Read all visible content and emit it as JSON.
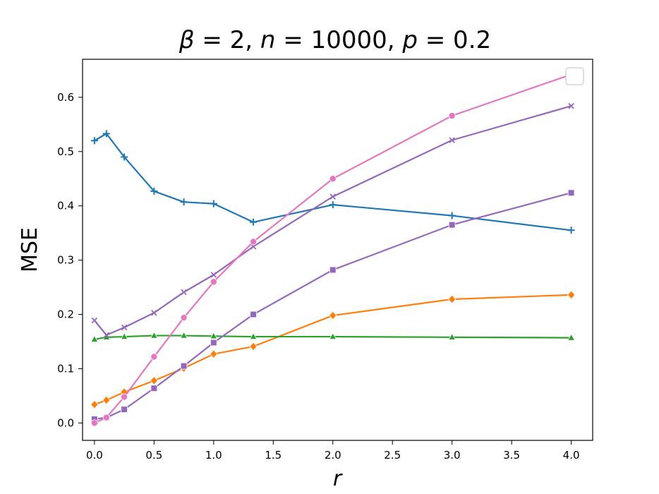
{
  "chart_data": {
    "type": "line",
    "title_parts": [
      {
        "text": "β",
        "italic": true
      },
      {
        "text": " = 2, ",
        "italic": false
      },
      {
        "text": "n",
        "italic": true
      },
      {
        "text": " = 10000, ",
        "italic": false
      },
      {
        "text": "p",
        "italic": true
      },
      {
        "text": " = 0.2",
        "italic": false
      }
    ],
    "xlabel": "r",
    "ylabel": "MSE",
    "xlim": [
      -0.1,
      4.18
    ],
    "ylim": [
      -0.032,
      0.67
    ],
    "xticks": [
      0.0,
      0.5,
      1.0,
      1.5,
      2.0,
      2.5,
      3.0,
      3.5,
      4.0
    ],
    "xtick_labels": [
      "0.0",
      "0.5",
      "1.0",
      "1.5",
      "2.0",
      "2.5",
      "3.0",
      "3.5",
      "4.0"
    ],
    "yticks": [
      0.0,
      0.1,
      0.2,
      0.3,
      0.4,
      0.5,
      0.6
    ],
    "ytick_labels": [
      "0.0",
      "0.1",
      "0.2",
      "0.3",
      "0.4",
      "0.5",
      "0.6"
    ],
    "grid": false,
    "legend": {
      "position": "top-right",
      "entries": []
    },
    "x": [
      0.0,
      0.1,
      0.25,
      0.5,
      0.75,
      1.0,
      1.333,
      2.0,
      3.0,
      4.0
    ],
    "series": [
      {
        "color": "#1f77b4",
        "marker": "plus",
        "values": [
          0.52,
          0.533,
          0.49,
          0.427,
          0.407,
          0.404,
          0.37,
          0.402,
          0.382,
          0.355
        ]
      },
      {
        "color": "#ff7f0e",
        "marker": "diamond",
        "values": [
          0.034,
          0.042,
          0.057,
          0.078,
          0.101,
          0.127,
          0.141,
          0.198,
          0.228,
          0.236
        ]
      },
      {
        "color": "#2ca02c",
        "marker": "triangle",
        "values": [
          0.154,
          0.158,
          0.159,
          0.161,
          0.161,
          0.16,
          0.159,
          0.159,
          0.158,
          0.157
        ]
      },
      {
        "color": "#9467bd",
        "marker": "x",
        "values": [
          0.189,
          0.162,
          0.176,
          0.203,
          0.241,
          0.273,
          0.325,
          0.417,
          0.521,
          0.584
        ]
      },
      {
        "color": "#9467bd",
        "marker": "square",
        "values": [
          0.007,
          0.01,
          0.025,
          0.064,
          0.105,
          0.148,
          0.2,
          0.282,
          0.365,
          0.424
        ]
      },
      {
        "color": "#e377c2",
        "marker": "circle",
        "values": [
          0.0,
          0.01,
          0.048,
          0.122,
          0.194,
          0.26,
          0.334,
          0.45,
          0.566,
          0.642
        ]
      }
    ]
  }
}
